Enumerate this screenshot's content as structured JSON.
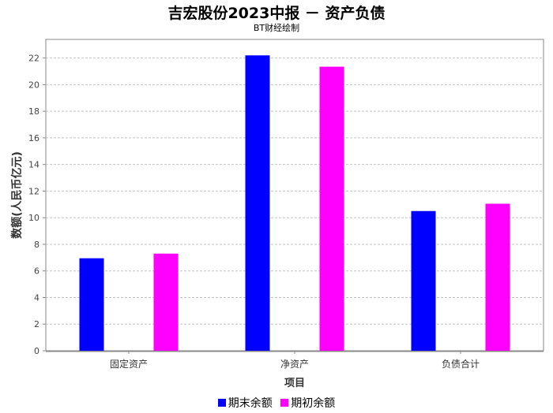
{
  "chart_data": {
    "type": "bar",
    "title": "吉宏股份2023中报 － 资产负债",
    "subtitle": "BT财经绘制",
    "xlabel": "项目",
    "ylabel": "数额(人民币亿元)",
    "categories": [
      "固定资产",
      "净资产",
      "负债合计"
    ],
    "series": [
      {
        "name": "期末余额",
        "color": "#0000ff",
        "values": [
          6.95,
          22.2,
          10.5
        ]
      },
      {
        "name": "期初余额",
        "color": "#ff00ff",
        "values": [
          7.3,
          21.35,
          11.05
        ]
      }
    ],
    "ylim": [
      0,
      23.4
    ],
    "yticks": [
      "0",
      "2",
      "4",
      "6",
      "8",
      "10",
      "12",
      "14",
      "16",
      "18",
      "20",
      "22"
    ],
    "grid": true,
    "legend_position": "bottom"
  }
}
